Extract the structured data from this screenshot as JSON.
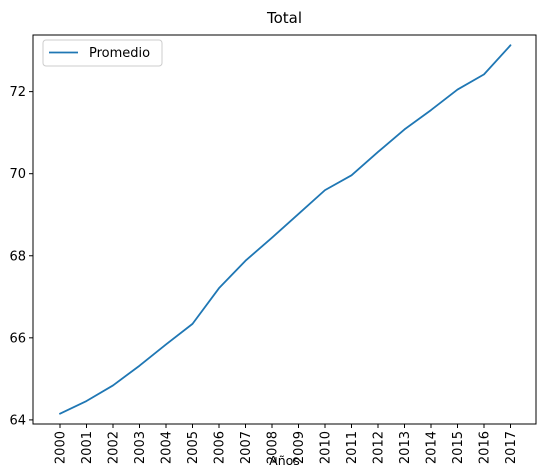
{
  "chart_data": {
    "type": "line",
    "title": "Total",
    "xlabel": "Años",
    "ylabel": "",
    "x": [
      "2000",
      "2001",
      "2002",
      "2003",
      "2004",
      "2005",
      "2006",
      "2007",
      "2008",
      "2009",
      "2010",
      "2011",
      "2012",
      "2013",
      "2014",
      "2015",
      "2016",
      "2017"
    ],
    "series": [
      {
        "name": "Promedio",
        "color": "#1f77b4",
        "values": [
          64.15,
          64.46,
          64.84,
          65.32,
          65.84,
          66.34,
          67.21,
          67.88,
          68.44,
          69.02,
          69.6,
          69.96,
          70.53,
          71.08,
          71.55,
          72.05,
          72.42,
          73.13
        ]
      }
    ],
    "ylim": [
      63.9,
      73.38
    ],
    "yticks": [
      64,
      66,
      68,
      70,
      72
    ],
    "grid": false,
    "legend_position": "top-left"
  }
}
